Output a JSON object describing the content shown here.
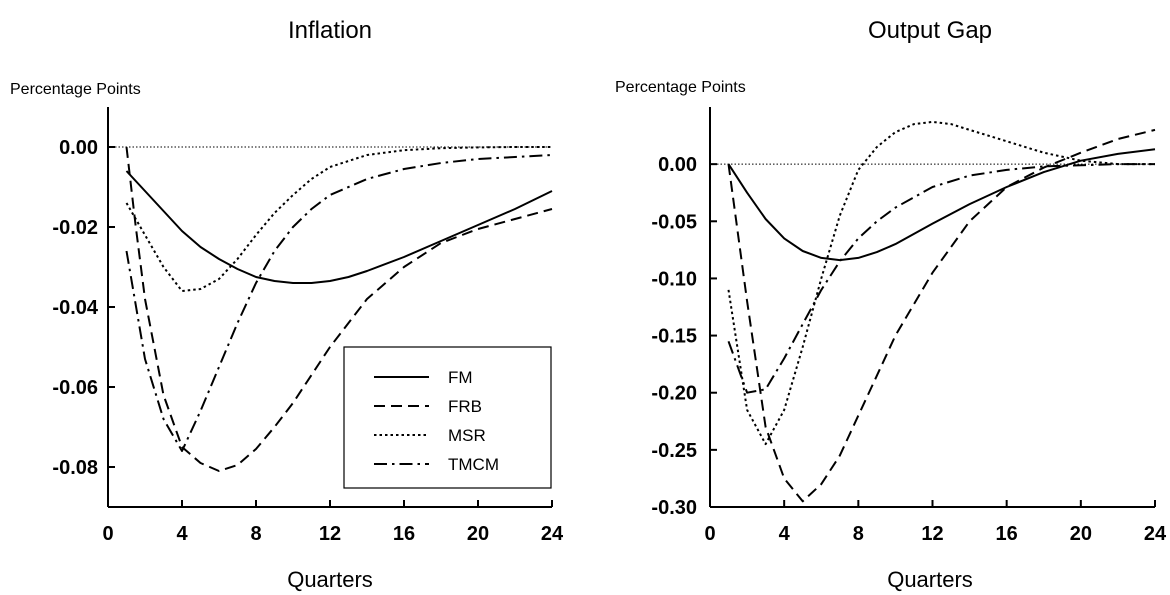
{
  "chart_data": [
    {
      "type": "line",
      "title": "Inflation",
      "ylabel": "Percentage Points",
      "xlabel": "Quarters",
      "xlim": [
        0,
        24
      ],
      "ylim": [
        -0.09,
        0.01
      ],
      "xticks": [
        0,
        4,
        8,
        12,
        16,
        20,
        24
      ],
      "xtick_labels": [
        "0",
        "4",
        "8",
        "12",
        "16",
        "20",
        "24"
      ],
      "yticks": [
        0.0,
        -0.02,
        -0.04,
        -0.06,
        -0.08
      ],
      "ytick_labels": [
        "0.00",
        "-0.02",
        "-0.04",
        "-0.06",
        "-0.08"
      ],
      "zero_line": true,
      "legend": {
        "position": "bottom-right",
        "entries": [
          "FM",
          "FRB",
          "MSR",
          "TMCM"
        ]
      },
      "series": [
        {
          "name": "FM",
          "style": "solid",
          "x": [
            1,
            2,
            3,
            4,
            5,
            6,
            7,
            8,
            9,
            10,
            11,
            12,
            13,
            14,
            16,
            18,
            20,
            22,
            24
          ],
          "y": [
            -0.006,
            -0.011,
            -0.016,
            -0.021,
            -0.025,
            -0.028,
            -0.0305,
            -0.0325,
            -0.0335,
            -0.034,
            -0.034,
            -0.0335,
            -0.0325,
            -0.031,
            -0.0275,
            -0.0235,
            -0.0195,
            -0.0155,
            -0.011
          ]
        },
        {
          "name": "FRB",
          "style": "dashed",
          "x": [
            1,
            1.5,
            2,
            3,
            4,
            5,
            6,
            7,
            8,
            9,
            10,
            11,
            12,
            14,
            16,
            18,
            20,
            22,
            24
          ],
          "y": [
            0.0,
            -0.02,
            -0.038,
            -0.062,
            -0.075,
            -0.079,
            -0.081,
            -0.0795,
            -0.0755,
            -0.07,
            -0.064,
            -0.057,
            -0.05,
            -0.038,
            -0.03,
            -0.024,
            -0.0205,
            -0.018,
            -0.0155
          ]
        },
        {
          "name": "MSR",
          "style": "dotted",
          "x": [
            1,
            2,
            3,
            4,
            5,
            6,
            7,
            8,
            9,
            10,
            11,
            12,
            14,
            16,
            18,
            20,
            22,
            24
          ],
          "y": [
            -0.014,
            -0.022,
            -0.03,
            -0.036,
            -0.0355,
            -0.033,
            -0.028,
            -0.022,
            -0.0165,
            -0.012,
            -0.008,
            -0.005,
            -0.002,
            -0.0008,
            -0.0003,
            -0.0001,
            0.0,
            0.0
          ]
        },
        {
          "name": "TMCM",
          "style": "dashdot",
          "x": [
            1,
            2,
            3,
            4,
            5,
            6,
            7,
            8,
            9,
            10,
            11,
            12,
            14,
            16,
            18,
            20,
            22,
            24
          ],
          "y": [
            -0.026,
            -0.053,
            -0.068,
            -0.076,
            -0.066,
            -0.055,
            -0.044,
            -0.034,
            -0.026,
            -0.02,
            -0.0155,
            -0.012,
            -0.008,
            -0.0055,
            -0.004,
            -0.003,
            -0.0025,
            -0.002
          ]
        }
      ]
    },
    {
      "type": "line",
      "title": "Output Gap",
      "ylabel": "Percentage Points",
      "xlabel": "Quarters",
      "xlim": [
        0,
        24
      ],
      "ylim": [
        -0.3,
        0.05
      ],
      "xticks": [
        0,
        4,
        8,
        12,
        16,
        20,
        24
      ],
      "xtick_labels": [
        "0",
        "4",
        "8",
        "12",
        "16",
        "20",
        "24"
      ],
      "yticks": [
        0.0,
        -0.05,
        -0.1,
        -0.15,
        -0.2,
        -0.25,
        -0.3
      ],
      "ytick_labels": [
        "0.00",
        "-0.05",
        "-0.10",
        "-0.15",
        "-0.20",
        "-0.25",
        "-0.30"
      ],
      "zero_line": true,
      "series": [
        {
          "name": "FM",
          "style": "solid",
          "x": [
            1,
            2,
            3,
            4,
            5,
            6,
            7,
            8,
            9,
            10,
            12,
            14,
            16,
            18,
            20,
            22,
            24
          ],
          "y": [
            0.0,
            -0.025,
            -0.048,
            -0.065,
            -0.076,
            -0.082,
            -0.084,
            -0.082,
            -0.077,
            -0.07,
            -0.052,
            -0.035,
            -0.02,
            -0.007,
            0.003,
            0.009,
            0.013
          ]
        },
        {
          "name": "FRB",
          "style": "dashed",
          "x": [
            1,
            2,
            3,
            4,
            5,
            6,
            7,
            8,
            9,
            10,
            12,
            14,
            16,
            18,
            20,
            22,
            24
          ],
          "y": [
            0.0,
            -0.12,
            -0.23,
            -0.275,
            -0.295,
            -0.28,
            -0.255,
            -0.22,
            -0.185,
            -0.15,
            -0.095,
            -0.05,
            -0.02,
            -0.003,
            0.01,
            0.022,
            0.03
          ]
        },
        {
          "name": "MSR",
          "style": "dotted",
          "x": [
            1,
            2,
            3,
            4,
            5,
            6,
            7,
            8,
            9,
            10,
            11,
            12,
            13,
            14,
            16,
            18,
            20,
            22,
            24
          ],
          "y": [
            -0.11,
            -0.215,
            -0.245,
            -0.215,
            -0.16,
            -0.1,
            -0.045,
            -0.005,
            0.015,
            0.028,
            0.035,
            0.037,
            0.035,
            0.03,
            0.02,
            0.01,
            0.003,
            0.0,
            0.0
          ]
        },
        {
          "name": "TMCM",
          "style": "dashdot",
          "x": [
            1,
            2,
            3,
            4,
            5,
            6,
            7,
            8,
            9,
            10,
            12,
            14,
            16,
            18,
            20,
            22,
            24
          ],
          "y": [
            -0.155,
            -0.2,
            -0.197,
            -0.17,
            -0.14,
            -0.11,
            -0.085,
            -0.065,
            -0.05,
            -0.038,
            -0.02,
            -0.01,
            -0.005,
            -0.002,
            -0.001,
            0.0,
            0.0
          ]
        }
      ]
    }
  ]
}
